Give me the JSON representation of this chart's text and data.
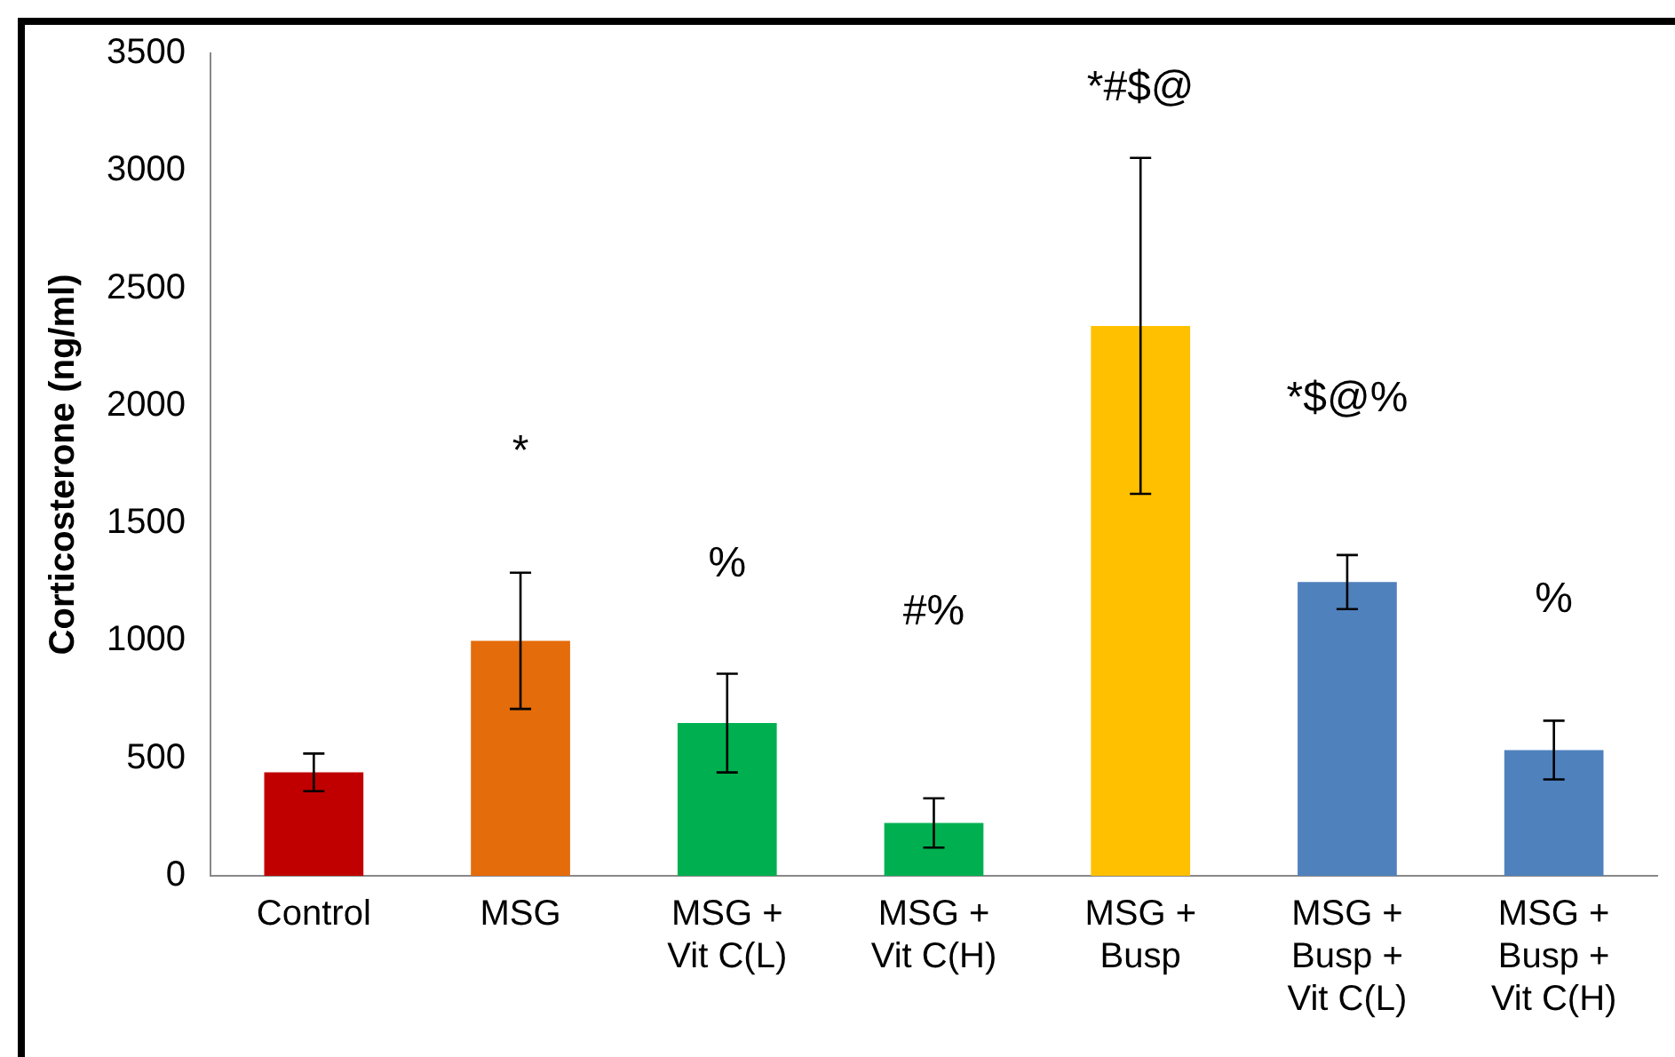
{
  "chart_data": {
    "type": "bar",
    "ylabel": "Corticosterone (ng/ml)",
    "categories": [
      "Control",
      "MSG",
      "MSG +\nVit C(L)",
      "MSG +\nVit C(H)",
      "MSG +\nBusp",
      "MSG +\nBusp +\nVit C(L)",
      "MSG +\nBusp +\nVit C(H)"
    ],
    "values": [
      440,
      1000,
      650,
      225,
      2340,
      1250,
      535
    ],
    "errors": [
      80,
      290,
      210,
      105,
      715,
      115,
      125
    ],
    "colors": [
      "#c00000",
      "#e46c0a",
      "#00b050",
      "#00b050",
      "#ffc000",
      "#4f81bd",
      "#4f81bd"
    ],
    "ylim": [
      0,
      3500
    ],
    "yticks": [
      0,
      500,
      1000,
      1500,
      2000,
      2500,
      3000,
      3500
    ],
    "grid": false,
    "legend": false,
    "annotations": [
      "*",
      "%",
      "#%",
      "*#$@",
      "*$@%",
      "%"
    ]
  }
}
